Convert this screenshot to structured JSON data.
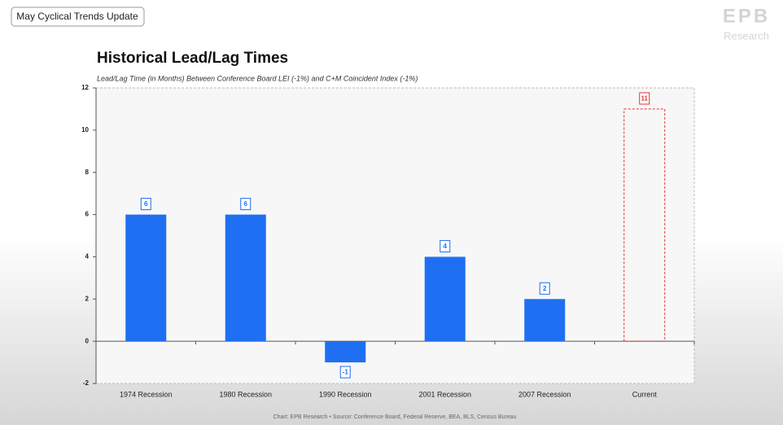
{
  "header": {
    "button": "May Cyclical Trends Update",
    "logo": "EPB",
    "logo_sub": "Research"
  },
  "chart_data": {
    "type": "bar",
    "title": "Historical Lead/Lag Times",
    "subtitle": "Lead/Lag Time (in Months) Between Conference Board LEI (-1%) and C+M Coincident Index (-1%)",
    "categories": [
      "1974 Recession",
      "1980 Recession",
      "1990 Recession",
      "2001 Recession",
      "2007 Recession",
      "Current"
    ],
    "values": [
      6,
      6,
      -1,
      4,
      2,
      11
    ],
    "colors": [
      "#1f6ff2",
      "#1f6ff2",
      "#1f6ff2",
      "#1f6ff2",
      "#1f6ff2",
      "#d9363e"
    ],
    "hollow": [
      false,
      false,
      false,
      false,
      false,
      true
    ],
    "ylim": [
      -2,
      12
    ],
    "yticks": [
      -2,
      0,
      2,
      4,
      6,
      8,
      10,
      12
    ],
    "source": "Chart: EPB Research  •  Source: Conference Board, Federal Reserve, BEA, BLS, Census Bureau"
  }
}
